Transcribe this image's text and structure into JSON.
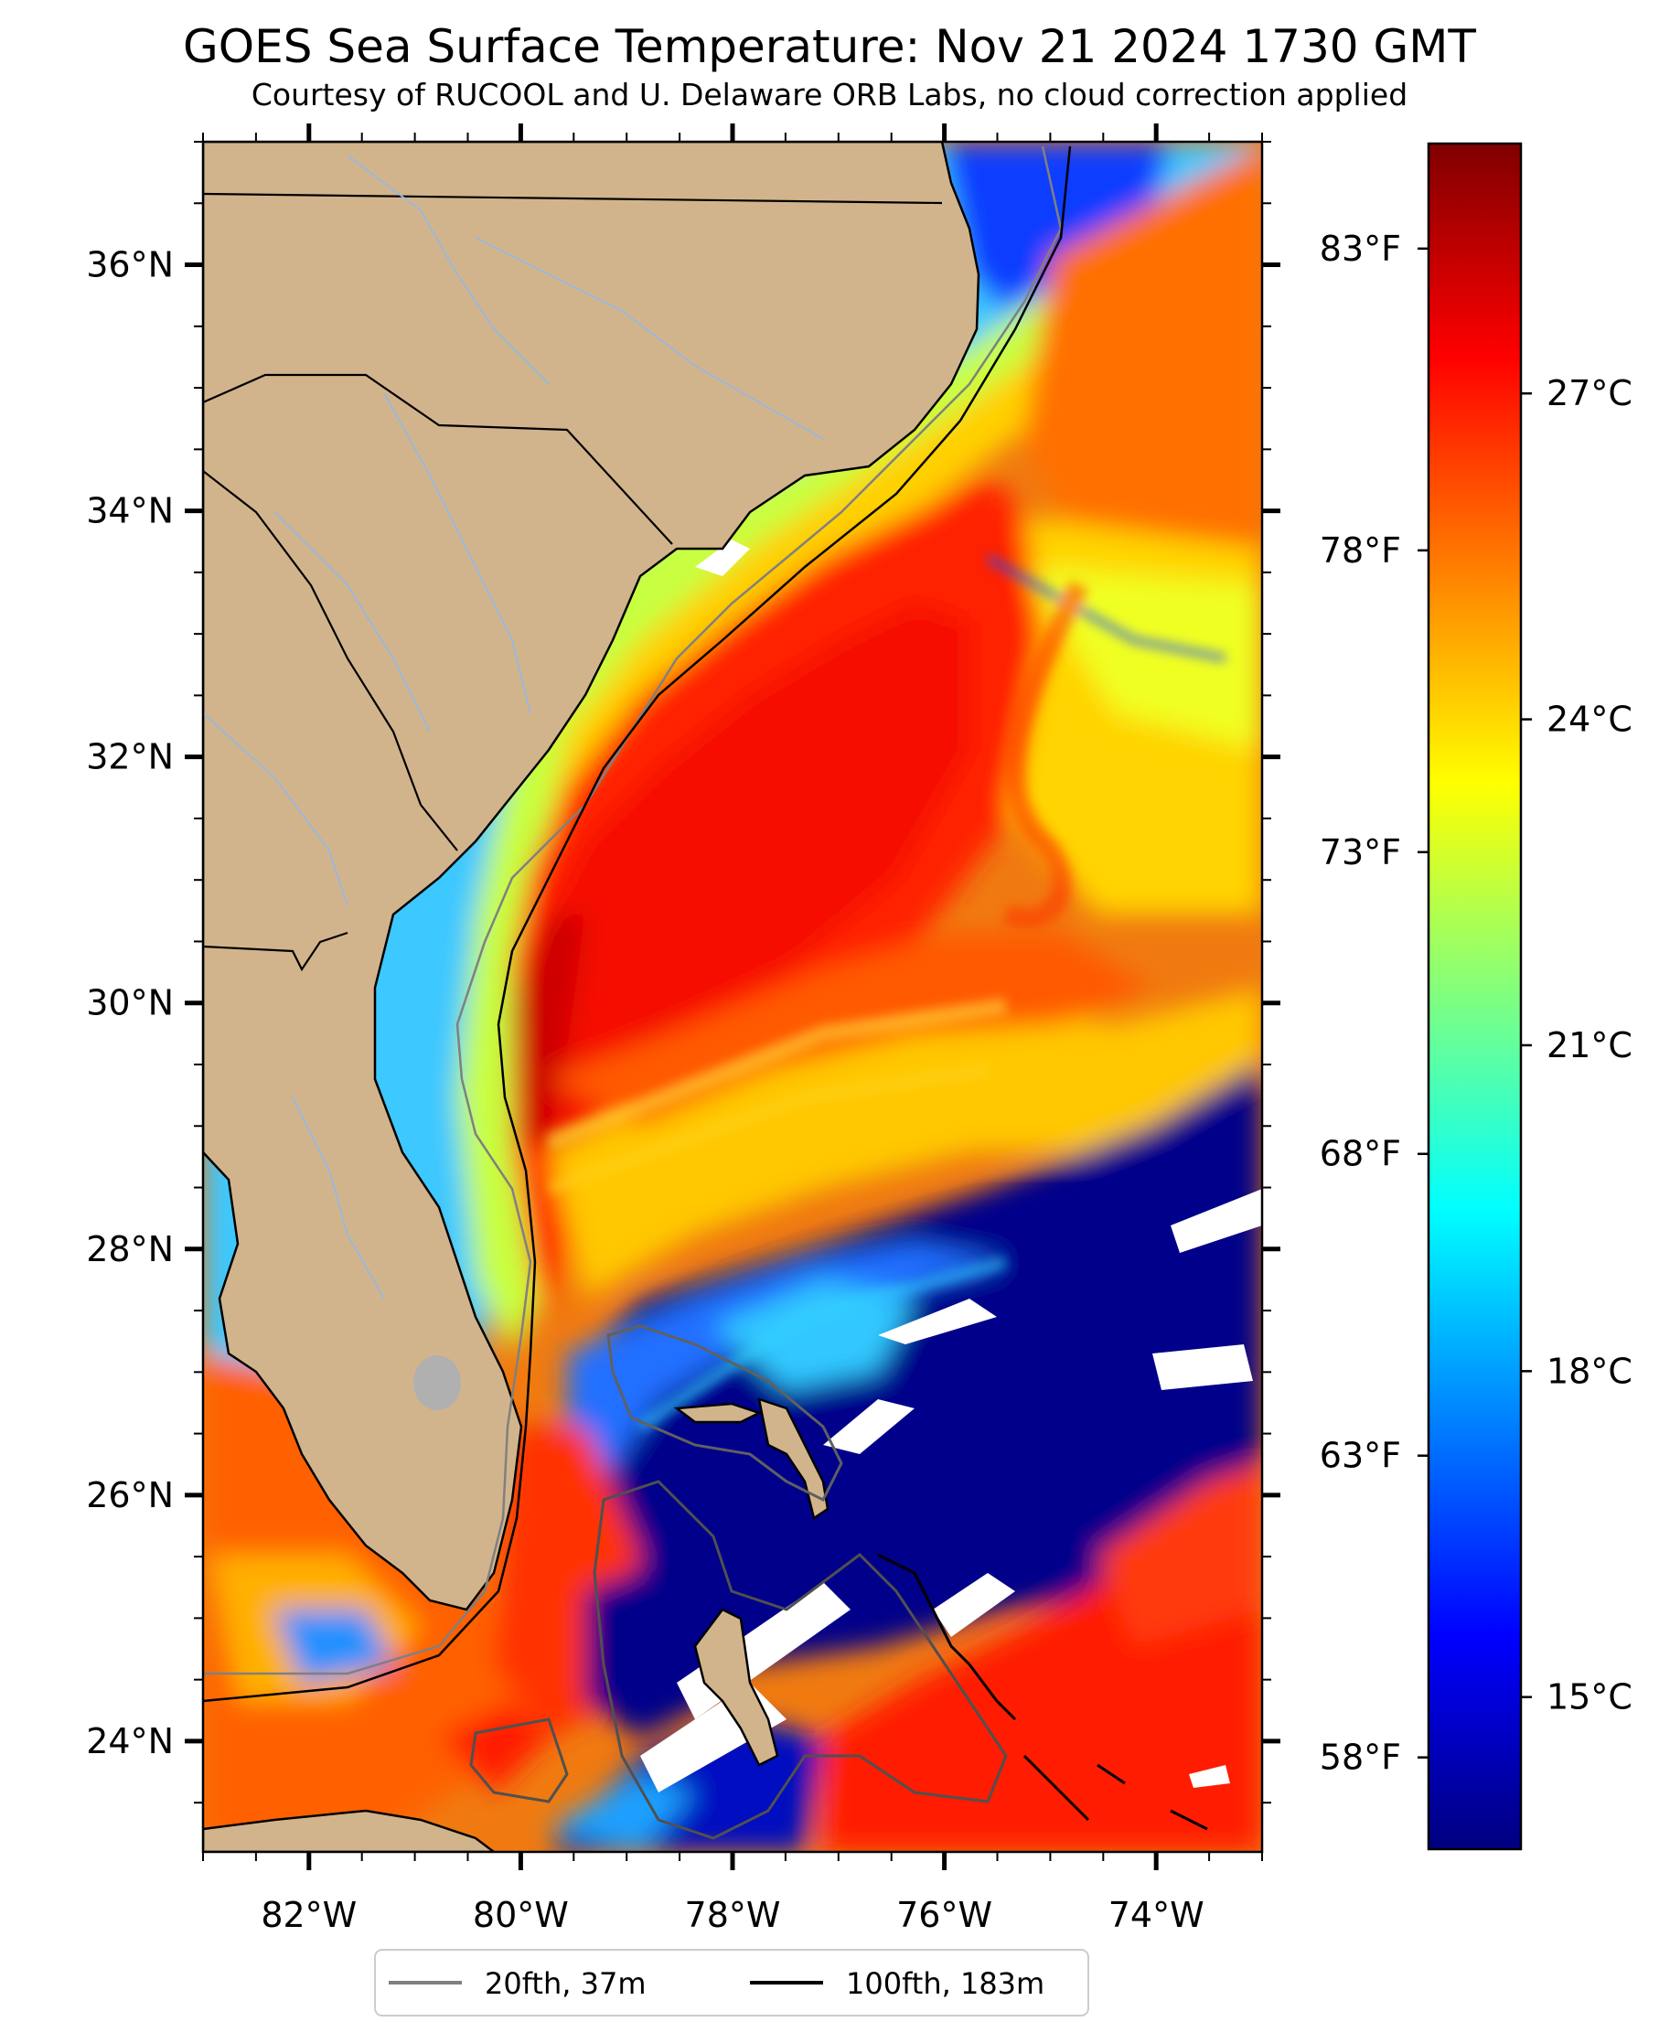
{
  "title": "GOES Sea Surface Temperature: Nov 21 2024 1730 GMT",
  "subtitle": "Courtesy of RUCOOL and U. Delaware ORB Labs, no cloud correction applied",
  "map": {
    "lon_range": [
      -83,
      -73
    ],
    "lat_range": [
      23.1,
      37.0
    ],
    "lon_ticks": [
      {
        "value": -82,
        "label": "82°W"
      },
      {
        "value": -80,
        "label": "80°W"
      },
      {
        "value": -78,
        "label": "78°W"
      },
      {
        "value": -76,
        "label": "76°W"
      },
      {
        "value": -74,
        "label": "74°W"
      }
    ],
    "lat_ticks": [
      {
        "value": 24,
        "label": "24°N"
      },
      {
        "value": 26,
        "label": "26°N"
      },
      {
        "value": 28,
        "label": "28°N"
      },
      {
        "value": 30,
        "label": "30°N"
      },
      {
        "value": 32,
        "label": "32°N"
      },
      {
        "value": 34,
        "label": "34°N"
      },
      {
        "value": 36,
        "label": "36°N"
      }
    ],
    "colors": {
      "land": "#d2b48c",
      "border": "#000000",
      "river": "#9db7d8",
      "isobath_20": "#808080",
      "isobath_100": "#000000",
      "cloud": "#ffffff"
    }
  },
  "colorbar": {
    "colormap": "jet",
    "range_c": [
      13.6,
      29.3
    ],
    "celsius_ticks": [
      {
        "value": 15,
        "label": "15°C"
      },
      {
        "value": 18,
        "label": "18°C"
      },
      {
        "value": 21,
        "label": "21°C"
      },
      {
        "value": 24,
        "label": "24°C"
      },
      {
        "value": 27,
        "label": "27°C"
      }
    ],
    "fahrenheit_ticks": [
      {
        "value": 58,
        "label": "58°F"
      },
      {
        "value": 63,
        "label": "63°F"
      },
      {
        "value": 68,
        "label": "68°F"
      },
      {
        "value": 73,
        "label": "73°F"
      },
      {
        "value": 78,
        "label": "78°F"
      },
      {
        "value": 83,
        "label": "83°F"
      }
    ]
  },
  "legend": {
    "entries": [
      {
        "label": "20fth, 37m",
        "color": "#808080"
      },
      {
        "label": "100fth, 183m",
        "color": "#000000"
      }
    ]
  }
}
